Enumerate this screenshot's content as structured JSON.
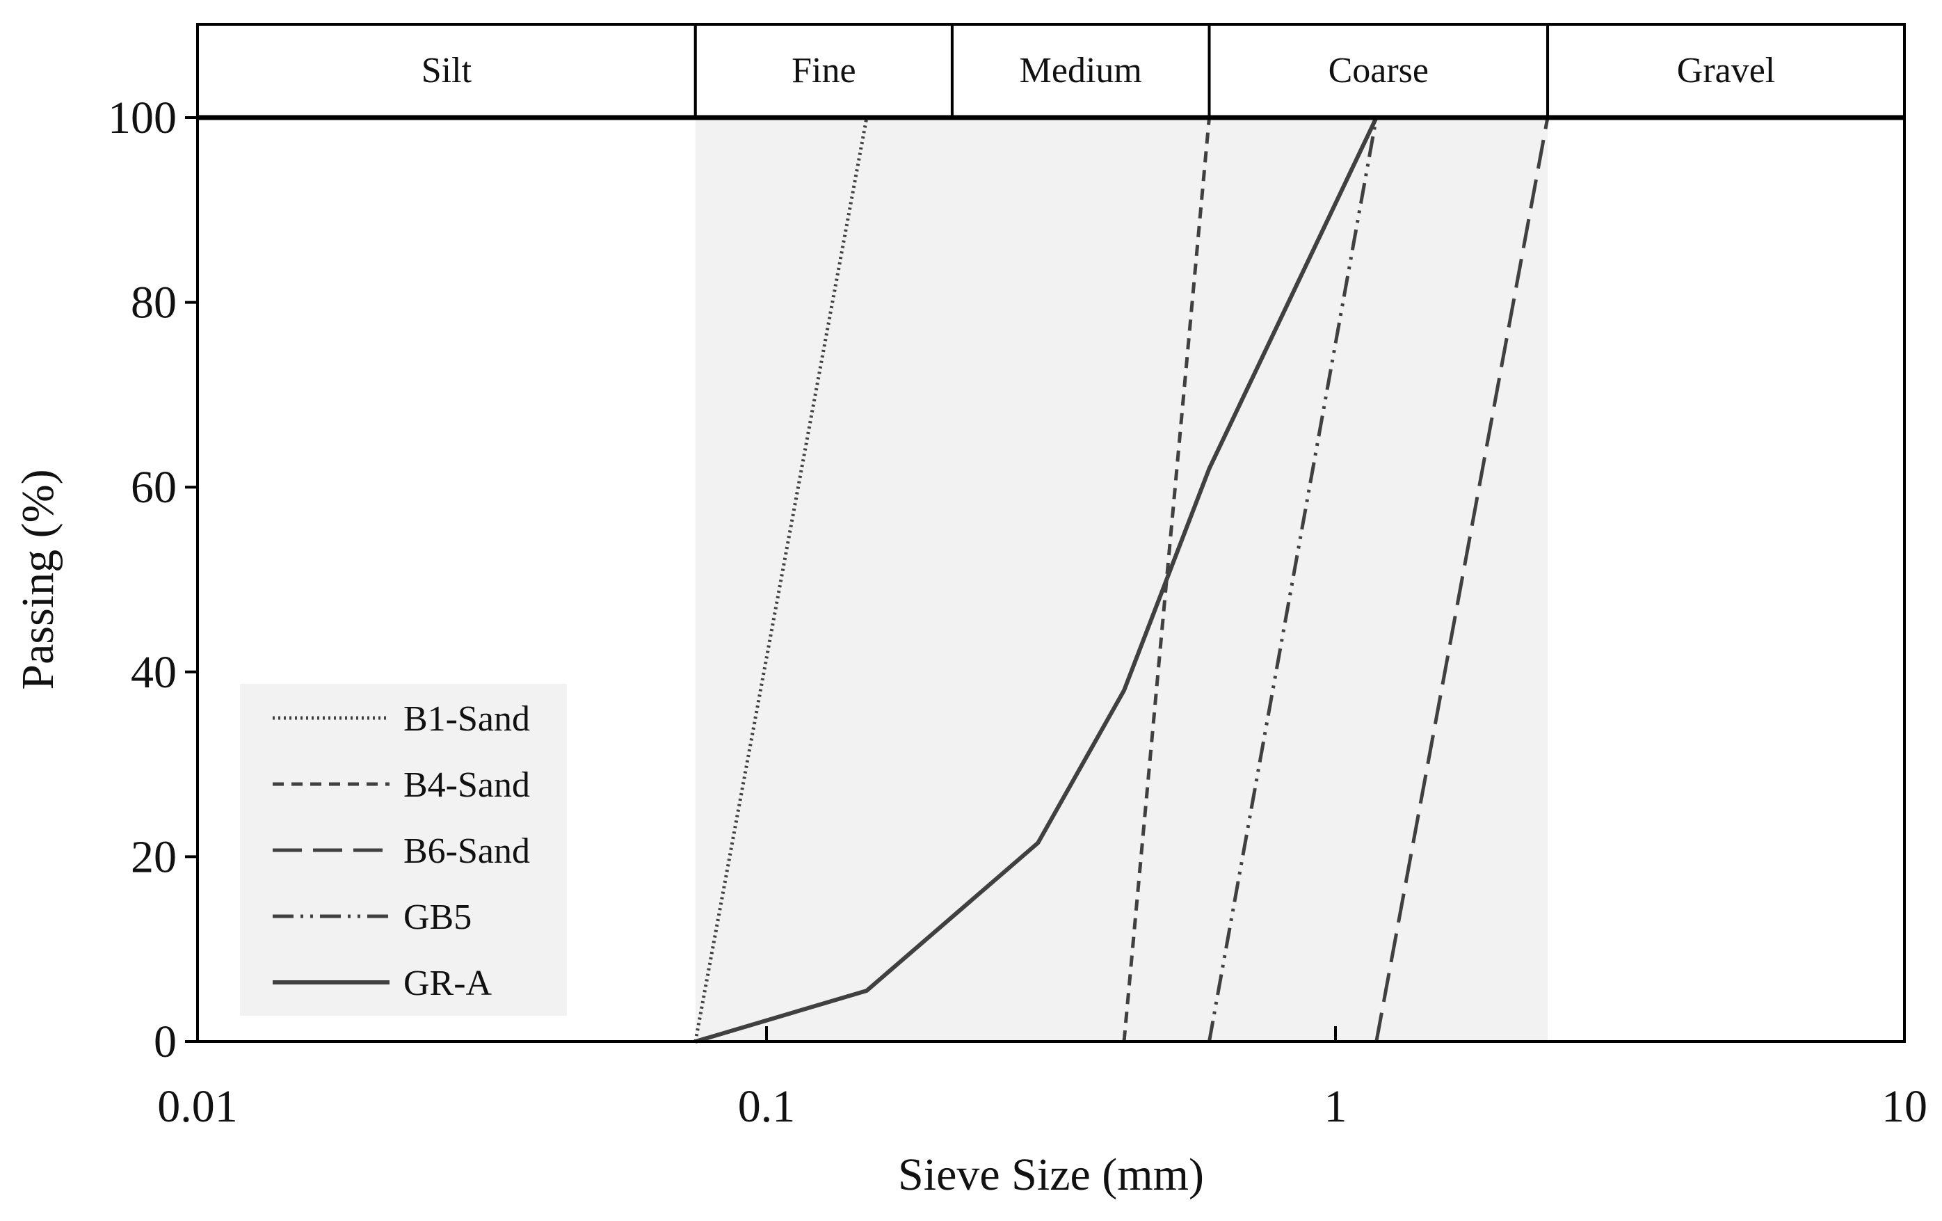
{
  "chart_data": {
    "type": "line",
    "title": "",
    "xlabel": "Sieve Size (mm)",
    "ylabel": "Passing (%)",
    "x_scale": "log",
    "xlim": [
      0.01,
      10
    ],
    "ylim": [
      0,
      100
    ],
    "x_ticks": [
      0.01,
      0.1,
      1,
      10
    ],
    "x_tick_labels": [
      "0.01",
      "0.1",
      "1",
      "10"
    ],
    "y_ticks": [
      0,
      20,
      40,
      60,
      80,
      100
    ],
    "y_tick_labels": [
      "0",
      "20",
      "40",
      "60",
      "80",
      "100"
    ],
    "grid": false,
    "legend_position": "bottom-left",
    "size_classes": [
      {
        "label": "Silt",
        "from": 0.01,
        "to": 0.075
      },
      {
        "label": "Fine",
        "from": 0.075,
        "to": 0.212
      },
      {
        "label": "Medium",
        "from": 0.212,
        "to": 0.6
      },
      {
        "label": "Coarse",
        "from": 0.6,
        "to": 2.36
      },
      {
        "label": "Gravel",
        "from": 2.36,
        "to": 10
      }
    ],
    "sand_range_shading": {
      "from": 0.075,
      "to": 2.36,
      "color": "#f2f2f2"
    },
    "series": [
      {
        "name": "B1-Sand",
        "dash": "dotted",
        "x": [
          0.075,
          0.15
        ],
        "y": [
          0,
          100
        ]
      },
      {
        "name": "B4-Sand",
        "dash": "short-dash",
        "x": [
          0.425,
          0.6
        ],
        "y": [
          0,
          100
        ]
      },
      {
        "name": "B6-Sand",
        "dash": "long-dash",
        "x": [
          1.18,
          2.36
        ],
        "y": [
          0,
          100
        ]
      },
      {
        "name": "GB5",
        "dash": "dash-dot-dot",
        "x": [
          0.6,
          1.18
        ],
        "y": [
          0,
          100
        ]
      },
      {
        "name": "GR-A",
        "dash": "solid",
        "x": [
          0.075,
          0.15,
          0.3,
          0.425,
          0.6,
          1.18
        ],
        "y": [
          0,
          5.5,
          21.5,
          38,
          62,
          100
        ]
      }
    ],
    "colors": {
      "line": "#404040",
      "axis": "#000000",
      "shading": "#f2f2f2",
      "legend_bg": "#f2f2f2"
    }
  }
}
